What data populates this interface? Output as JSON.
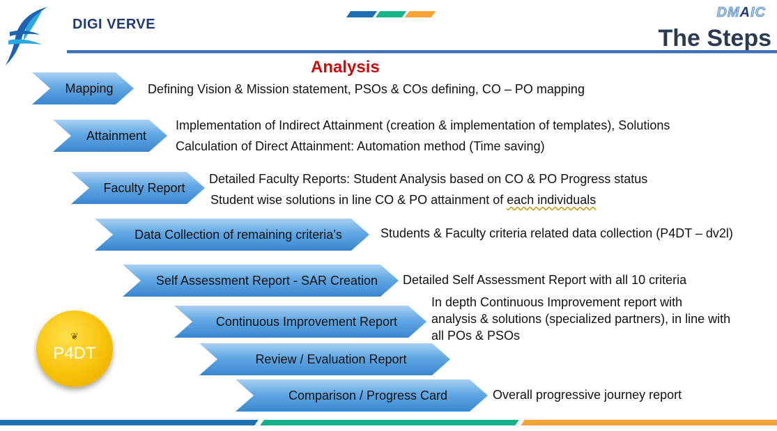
{
  "header": {
    "brand": "DIGI VERVE",
    "dmaic": {
      "prefix": "DM",
      "highlight": "A",
      "suffix": "IC"
    },
    "title": "The Steps"
  },
  "section_title": "Analysis",
  "colors": {
    "blue": "#1f6fb5",
    "green": "#16b38a",
    "orange": "#f7a234",
    "accent_red": "#c80c0c"
  },
  "steps": [
    {
      "label": "Mapping",
      "lines": [
        "Defining Vision & Mission statement,  PSOs & COs defining, CO – PO mapping"
      ]
    },
    {
      "label": "Attainment",
      "lines": [
        "Implementation of Indirect Attainment (creation & implementation of templates), Solutions",
        "Calculation of Direct Attainment: Automation method (Time saving)"
      ]
    },
    {
      "label": "Faculty Report",
      "lines": [
        "Detailed Faculty Reports: Student Analysis based on CO & PO Progress status",
        "Student wise solutions in line CO & PO attainment of ",
        "each individuals"
      ]
    },
    {
      "label": "Data Collection of remaining criteria’s",
      "lines": [
        "Students & Faculty criteria related data collection (P4DT – dv2l)"
      ]
    },
    {
      "label": "Self Assessment Report - SAR Creation",
      "lines": [
        "Detailed Self Assessment Report with all 10 criteria"
      ]
    },
    {
      "label": "Continuous Improvement Report",
      "lines": [
        "In depth Continuous Improvement report with",
        "analysis & solutions (specialized partners), in line with",
        "all POs & PSOs"
      ]
    },
    {
      "label": "Review / Evaluation Report",
      "lines": []
    },
    {
      "label": "Comparison / Progress Card",
      "lines": [
        "Overall progressive journey report"
      ]
    }
  ],
  "badge": {
    "text": "P4DT",
    "icon": "leaf-flame-icon"
  }
}
